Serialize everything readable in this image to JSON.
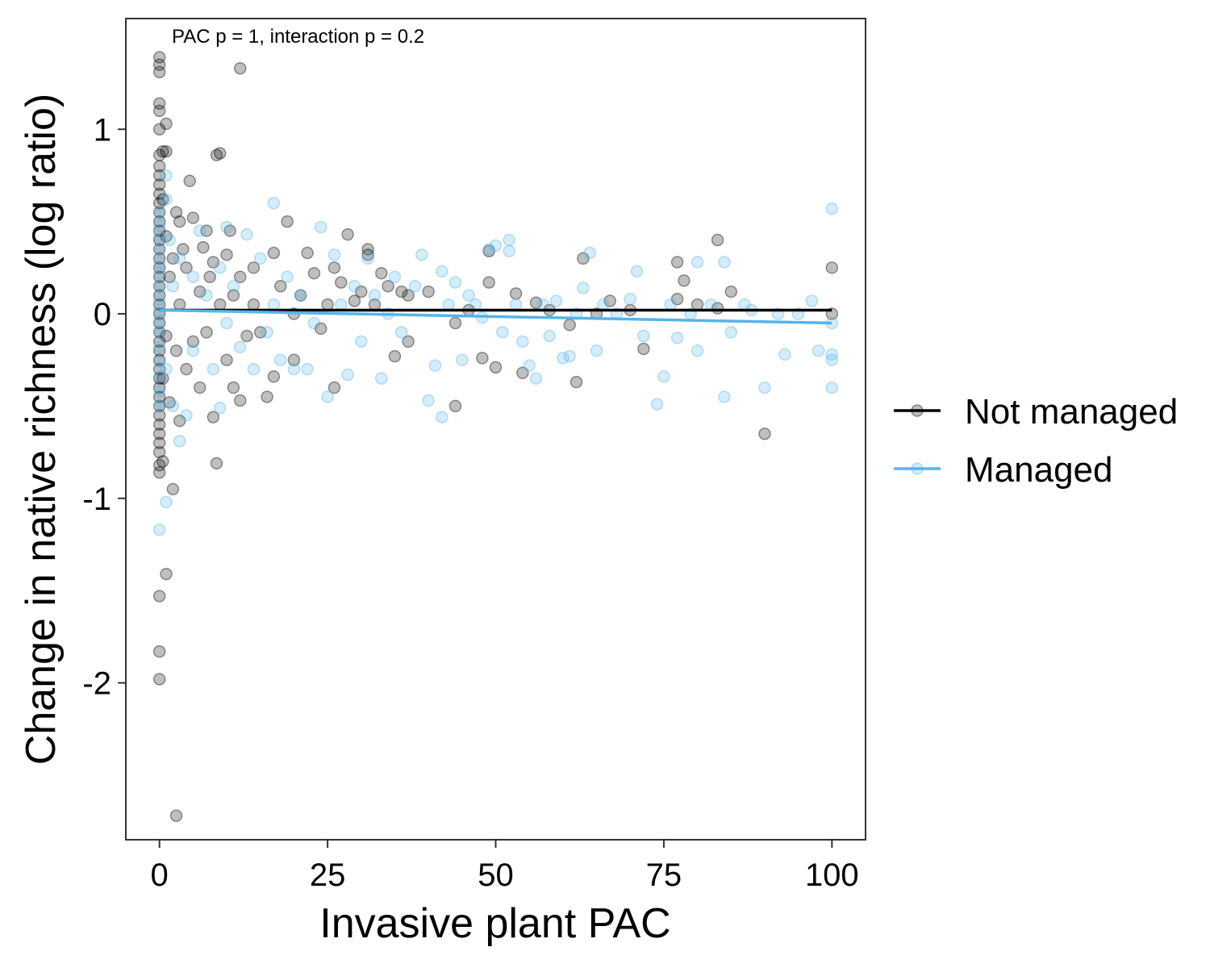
{
  "chart_data": {
    "type": "scatter",
    "xlabel": "Invasive plant PAC",
    "ylabel": "Change in native richness (log ratio)",
    "annotation": "PAC p =  1, interaction p = 0.2",
    "xlim": [
      -5,
      105
    ],
    "ylim": [
      -2.85,
      1.6
    ],
    "x_ticks": [
      0,
      25,
      50,
      75,
      100
    ],
    "x_tick_labels": [
      "0",
      "25",
      "50",
      "75",
      "100"
    ],
    "y_ticks": [
      1,
      0,
      -1,
      -2
    ],
    "y_tick_labels": [
      "1",
      "0",
      "-1",
      "-2"
    ],
    "grid": false,
    "legend_position": "right",
    "series": [
      {
        "name": "Not managed",
        "color": "#000000",
        "point_alpha": 0.25,
        "fit": {
          "x": [
            0,
            100
          ],
          "y": [
            0.02,
            0.02
          ]
        },
        "points": [
          [
            0,
            1.39
          ],
          [
            0,
            1.35
          ],
          [
            0,
            1.31
          ],
          [
            0,
            1.14
          ],
          [
            0,
            1.1
          ],
          [
            0,
            1.0
          ],
          [
            0,
            0.86
          ],
          [
            0,
            0.8
          ],
          [
            0,
            0.75
          ],
          [
            0,
            0.7
          ],
          [
            0,
            0.65
          ],
          [
            0,
            0.6
          ],
          [
            0,
            0.55
          ],
          [
            0,
            0.5
          ],
          [
            0,
            0.45
          ],
          [
            0,
            0.4
          ],
          [
            0,
            0.35
          ],
          [
            0,
            0.3
          ],
          [
            0,
            0.25
          ],
          [
            0,
            0.2
          ],
          [
            0,
            0.15
          ],
          [
            0,
            0.1
          ],
          [
            0,
            0.05
          ],
          [
            0,
            0.0
          ],
          [
            0,
            -0.05
          ],
          [
            0,
            -0.1
          ],
          [
            0,
            -0.15
          ],
          [
            0,
            -0.2
          ],
          [
            0,
            -0.25
          ],
          [
            0,
            -0.3
          ],
          [
            0,
            -0.35
          ],
          [
            0,
            -0.4
          ],
          [
            0,
            -0.45
          ],
          [
            0,
            -0.5
          ],
          [
            0,
            -0.55
          ],
          [
            0,
            -0.6
          ],
          [
            0,
            -0.65
          ],
          [
            0,
            -0.7
          ],
          [
            0,
            -0.75
          ],
          [
            0,
            -0.82
          ],
          [
            0,
            -0.86
          ],
          [
            0,
            -1.53
          ],
          [
            0,
            -1.83
          ],
          [
            0,
            -1.98
          ],
          [
            0.5,
            0.88
          ],
          [
            0.5,
            -0.8
          ],
          [
            0.5,
            0.62
          ],
          [
            0.5,
            -0.35
          ],
          [
            1,
            0.88
          ],
          [
            1,
            1.03
          ],
          [
            1,
            -1.41
          ],
          [
            1,
            0.42
          ],
          [
            1,
            -0.12
          ],
          [
            1.5,
            0.2
          ],
          [
            1.5,
            -0.48
          ],
          [
            2,
            -0.95
          ],
          [
            2,
            0.3
          ],
          [
            2.5,
            -2.72
          ],
          [
            2.5,
            0.55
          ],
          [
            2.5,
            -0.2
          ],
          [
            3,
            0.05
          ],
          [
            3,
            -0.58
          ],
          [
            3,
            0.5
          ],
          [
            3.5,
            0.35
          ],
          [
            4,
            -0.3
          ],
          [
            4,
            0.25
          ],
          [
            4.5,
            0.72
          ],
          [
            5,
            0.52
          ],
          [
            5,
            -0.15
          ],
          [
            6,
            0.12
          ],
          [
            6,
            -0.4
          ],
          [
            6.5,
            0.36
          ],
          [
            7,
            0.45
          ],
          [
            7,
            -0.1
          ],
          [
            7.5,
            0.2
          ],
          [
            8,
            -0.56
          ],
          [
            8,
            0.28
          ],
          [
            8.5,
            -0.81
          ],
          [
            8.5,
            0.86
          ],
          [
            9,
            0.87
          ],
          [
            9,
            0.05
          ],
          [
            10,
            0.32
          ],
          [
            10,
            -0.25
          ],
          [
            10.5,
            0.45
          ],
          [
            11,
            0.1
          ],
          [
            11,
            -0.4
          ],
          [
            12,
            1.33
          ],
          [
            12,
            0.2
          ],
          [
            12,
            -0.47
          ],
          [
            13,
            -0.12
          ],
          [
            14,
            0.25
          ],
          [
            14,
            0.05
          ],
          [
            15,
            -0.1
          ],
          [
            16,
            -0.45
          ],
          [
            17,
            0.33
          ],
          [
            17,
            -0.34
          ],
          [
            18,
            0.15
          ],
          [
            19,
            0.5
          ],
          [
            20,
            0.0
          ],
          [
            20,
            -0.25
          ],
          [
            21,
            0.1
          ],
          [
            22,
            0.33
          ],
          [
            23,
            0.22
          ],
          [
            24,
            -0.08
          ],
          [
            25,
            0.05
          ],
          [
            26,
            0.25
          ],
          [
            26,
            -0.4
          ],
          [
            27,
            0.17
          ],
          [
            28,
            0.43
          ],
          [
            29,
            0.07
          ],
          [
            30,
            0.12
          ],
          [
            31,
            0.35
          ],
          [
            31,
            0.32
          ],
          [
            32,
            0.05
          ],
          [
            33,
            0.22
          ],
          [
            34,
            0.15
          ],
          [
            35,
            -0.23
          ],
          [
            36,
            0.12
          ],
          [
            37,
            0.1
          ],
          [
            37,
            -0.15
          ],
          [
            40,
            0.12
          ],
          [
            44,
            -0.5
          ],
          [
            44,
            -0.05
          ],
          [
            46,
            0.02
          ],
          [
            48,
            -0.24
          ],
          [
            49,
            0.17
          ],
          [
            49,
            0.34
          ],
          [
            50,
            -0.29
          ],
          [
            53,
            0.11
          ],
          [
            54,
            -0.32
          ],
          [
            56,
            0.06
          ],
          [
            58,
            0.02
          ],
          [
            61,
            -0.06
          ],
          [
            62,
            -0.37
          ],
          [
            63,
            0.3
          ],
          [
            65,
            0.0
          ],
          [
            67,
            0.07
          ],
          [
            70,
            0.02
          ],
          [
            72,
            -0.19
          ],
          [
            77,
            0.28
          ],
          [
            77,
            0.08
          ],
          [
            78,
            0.18
          ],
          [
            80,
            0.05
          ],
          [
            83,
            0.4
          ],
          [
            83,
            0.03
          ],
          [
            85,
            0.12
          ],
          [
            90,
            -0.65
          ],
          [
            100,
            0.25
          ],
          [
            100,
            0.0
          ]
        ]
      },
      {
        "name": "Managed",
        "color": "#56B4E9",
        "point_alpha": 0.25,
        "fit": {
          "x": [
            0,
            100
          ],
          "y": [
            0.02,
            -0.05
          ]
        },
        "points": [
          [
            0,
            0.55
          ],
          [
            0,
            0.48
          ],
          [
            0,
            0.42
          ],
          [
            0,
            0.35
          ],
          [
            0,
            0.28
          ],
          [
            0,
            0.22
          ],
          [
            0,
            0.15
          ],
          [
            0,
            0.08
          ],
          [
            0,
            0.02
          ],
          [
            0,
            -0.04
          ],
          [
            0,
            -0.1
          ],
          [
            0,
            -0.18
          ],
          [
            0,
            -0.26
          ],
          [
            0,
            -0.34
          ],
          [
            0,
            -0.42
          ],
          [
            0,
            -0.5
          ],
          [
            0,
            -1.17
          ],
          [
            1,
            0.75
          ],
          [
            1,
            0.62
          ],
          [
            1,
            -1.02
          ],
          [
            1,
            -0.3
          ],
          [
            1.5,
            0.4
          ],
          [
            2,
            0.15
          ],
          [
            2,
            -0.5
          ],
          [
            3,
            -0.69
          ],
          [
            3,
            0.3
          ],
          [
            4,
            -0.55
          ],
          [
            5,
            0.2
          ],
          [
            5,
            -0.2
          ],
          [
            6,
            0.45
          ],
          [
            7,
            0.1
          ],
          [
            8,
            -0.3
          ],
          [
            9,
            -0.51
          ],
          [
            9,
            0.25
          ],
          [
            10,
            0.47
          ],
          [
            10,
            -0.05
          ],
          [
            11,
            0.15
          ],
          [
            12,
            -0.18
          ],
          [
            13,
            0.43
          ],
          [
            14,
            -0.3
          ],
          [
            15,
            0.3
          ],
          [
            16,
            -0.1
          ],
          [
            17,
            0.6
          ],
          [
            17,
            0.05
          ],
          [
            18,
            -0.25
          ],
          [
            19,
            0.2
          ],
          [
            20,
            -0.3
          ],
          [
            21,
            0.1
          ],
          [
            22,
            -0.3
          ],
          [
            23,
            -0.05
          ],
          [
            24,
            0.47
          ],
          [
            25,
            -0.45
          ],
          [
            26,
            0.32
          ],
          [
            27,
            0.05
          ],
          [
            28,
            -0.33
          ],
          [
            29,
            0.15
          ],
          [
            30,
            -0.15
          ],
          [
            31,
            0.3
          ],
          [
            32,
            0.1
          ],
          [
            33,
            -0.35
          ],
          [
            34,
            0.0
          ],
          [
            35,
            0.2
          ],
          [
            36,
            -0.1
          ],
          [
            38,
            0.15
          ],
          [
            39,
            0.32
          ],
          [
            40,
            -0.47
          ],
          [
            41,
            -0.28
          ],
          [
            42,
            0.23
          ],
          [
            42,
            -0.56
          ],
          [
            43,
            0.05
          ],
          [
            44,
            0.17
          ],
          [
            45,
            -0.25
          ],
          [
            46,
            0.1
          ],
          [
            47,
            0.05
          ],
          [
            48,
            -0.02
          ],
          [
            49,
            0.35
          ],
          [
            50,
            0.37
          ],
          [
            51,
            -0.1
          ],
          [
            52,
            0.34
          ],
          [
            52,
            0.4
          ],
          [
            53,
            0.05
          ],
          [
            54,
            -0.15
          ],
          [
            55,
            -0.28
          ],
          [
            56,
            -0.35
          ],
          [
            57,
            0.05
          ],
          [
            58,
            -0.12
          ],
          [
            59,
            0.07
          ],
          [
            60,
            -0.24
          ],
          [
            61,
            -0.23
          ],
          [
            62,
            0.0
          ],
          [
            63,
            0.14
          ],
          [
            64,
            0.33
          ],
          [
            65,
            -0.2
          ],
          [
            66,
            0.05
          ],
          [
            68,
            0.0
          ],
          [
            70,
            0.08
          ],
          [
            71,
            0.23
          ],
          [
            72,
            -0.12
          ],
          [
            74,
            -0.49
          ],
          [
            75,
            -0.34
          ],
          [
            76,
            0.05
          ],
          [
            77,
            -0.13
          ],
          [
            79,
            0.0
          ],
          [
            80,
            0.28
          ],
          [
            80,
            -0.2
          ],
          [
            82,
            0.05
          ],
          [
            84,
            0.28
          ],
          [
            84,
            -0.45
          ],
          [
            85,
            -0.1
          ],
          [
            87,
            0.05
          ],
          [
            88,
            0.02
          ],
          [
            90,
            -0.4
          ],
          [
            92,
            0.0
          ],
          [
            93,
            -0.22
          ],
          [
            95,
            0.0
          ],
          [
            97,
            0.07
          ],
          [
            98,
            -0.2
          ],
          [
            100,
            0.57
          ],
          [
            100,
            -0.05
          ],
          [
            100,
            -0.25
          ],
          [
            100,
            -0.4
          ],
          [
            100,
            -0.22
          ]
        ]
      }
    ]
  }
}
